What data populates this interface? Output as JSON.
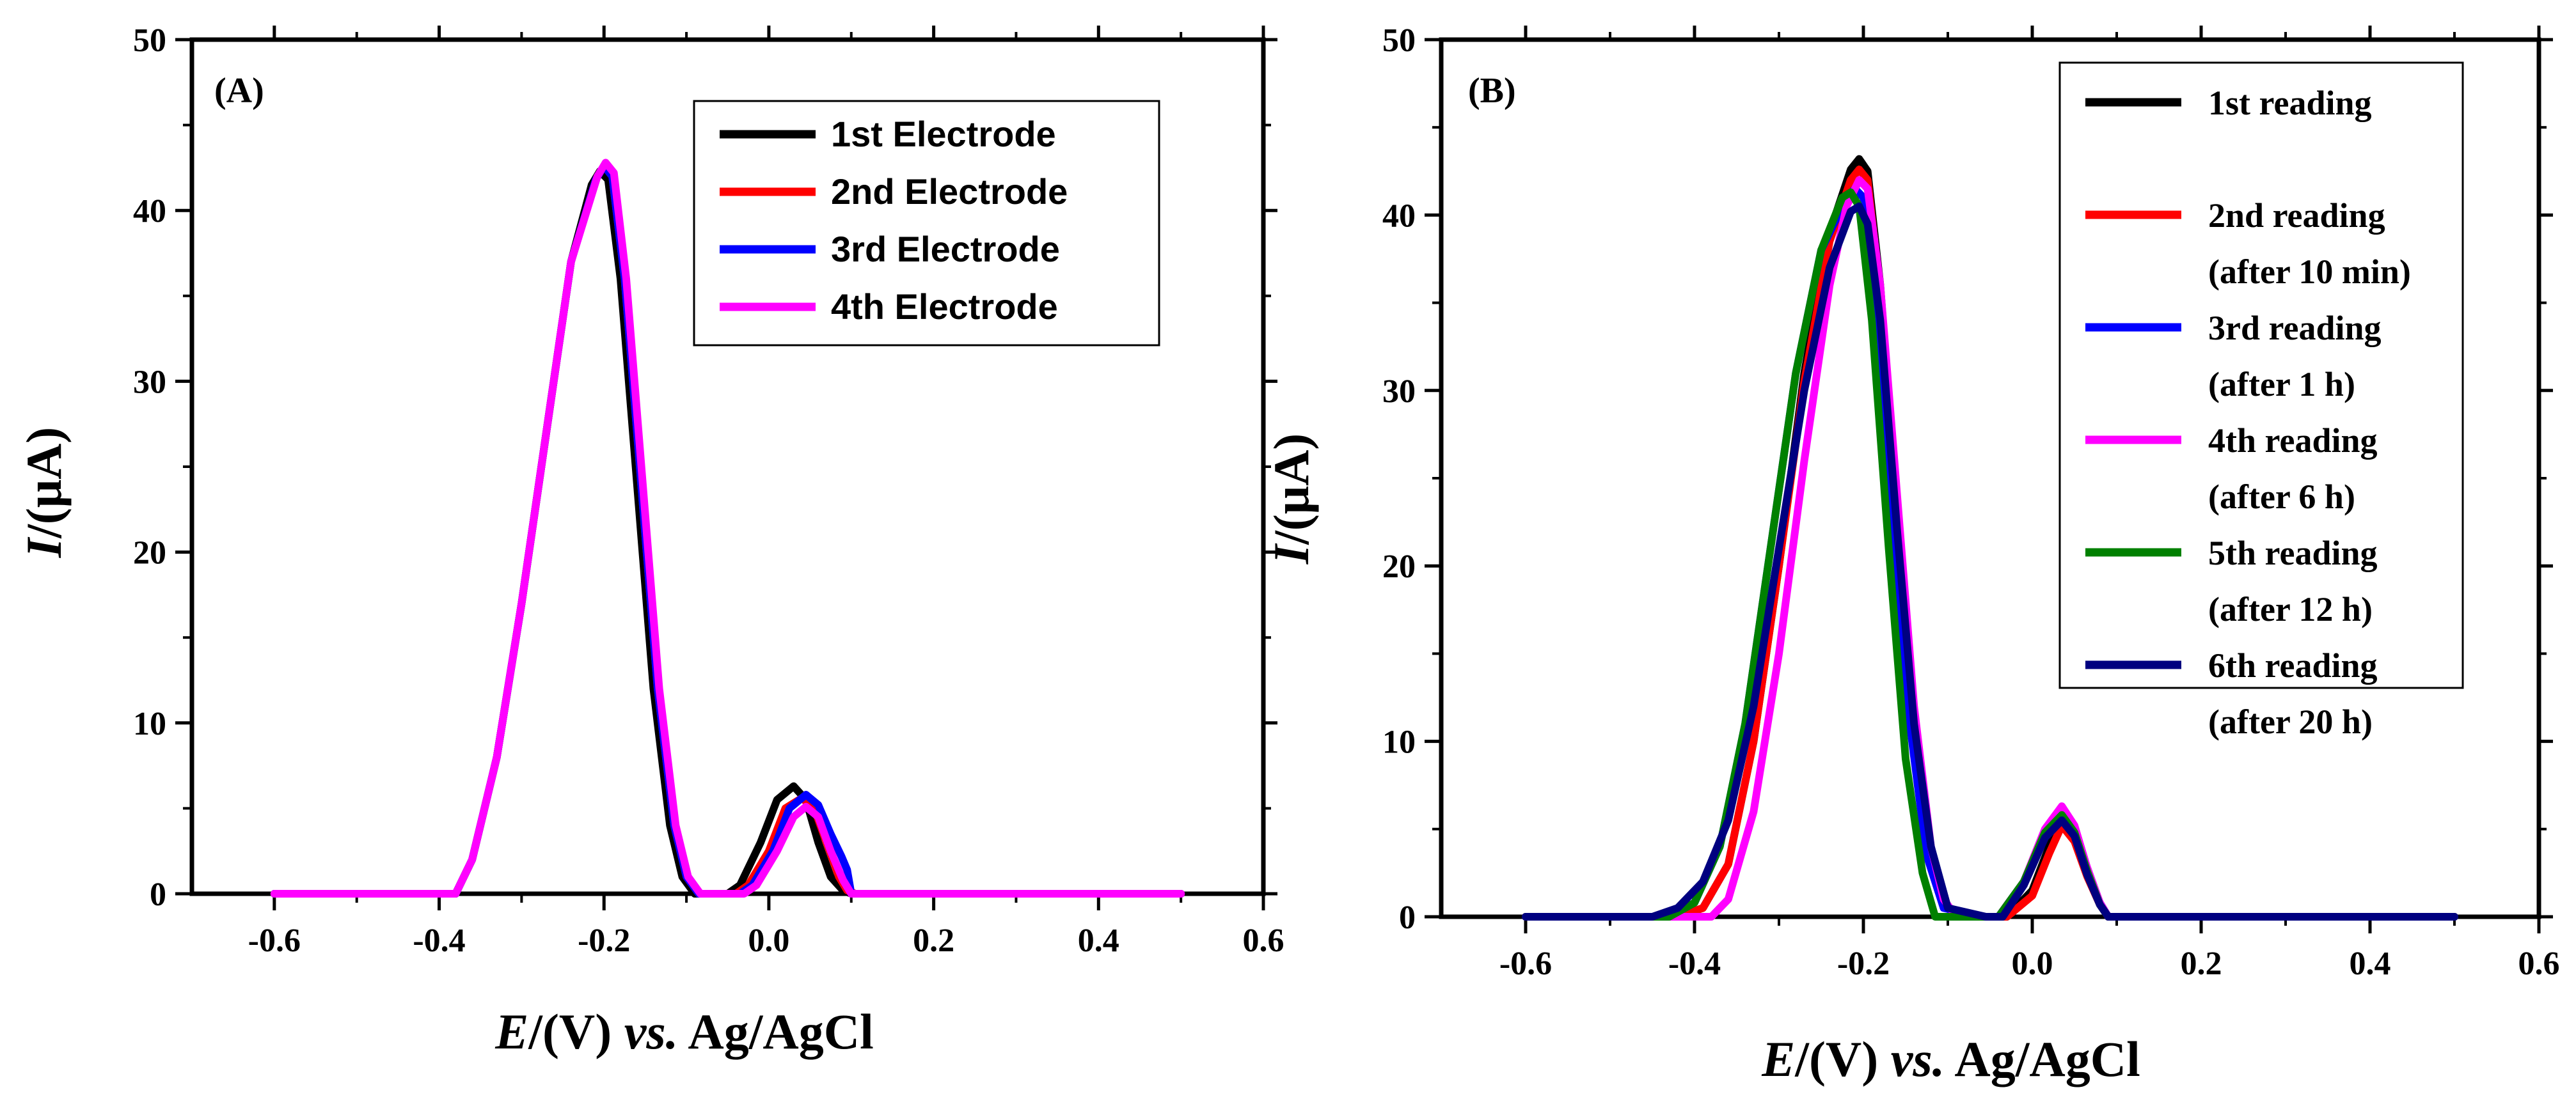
{
  "chart_data": [
    {
      "id": "A",
      "type": "line",
      "panel_label": "(A)",
      "xlabel_italic": "E",
      "xlabel_rest": "/(V) ",
      "xlabel_vs": "vs.",
      "xlabel_ref": " Ag/AgCl",
      "ylabel_italic": "I",
      "ylabel_rest": "/(μA)",
      "xlim": [
        -0.7,
        0.6
      ],
      "ylim": [
        0,
        50
      ],
      "xticks": [
        -0.6,
        -0.4,
        -0.2,
        0.0,
        0.2,
        0.4,
        0.6
      ],
      "xtick_labels": [
        "-0.6",
        "-0.4",
        "-0.2",
        "0.0",
        "0.2",
        "0.4",
        "0.6"
      ],
      "yticks": [
        0,
        10,
        20,
        30,
        40,
        50
      ],
      "ytick_labels": [
        "0",
        "10",
        "20",
        "30",
        "40",
        "50"
      ],
      "legend_position": "top-right",
      "series": [
        {
          "name": "1st Electrode",
          "color": "#000000",
          "x": [
            -0.6,
            -0.38,
            -0.36,
            -0.33,
            -0.3,
            -0.27,
            -0.24,
            -0.215,
            -0.205,
            -0.195,
            -0.18,
            -0.16,
            -0.14,
            -0.12,
            -0.105,
            -0.09,
            -0.05,
            -0.035,
            -0.01,
            0.01,
            0.03,
            0.045,
            0.06,
            0.075,
            0.09,
            0.1,
            0.5
          ],
          "y": [
            0,
            0,
            2,
            8,
            17,
            27,
            37,
            41.5,
            42.3,
            41.8,
            36,
            24,
            12,
            4,
            1,
            0,
            0,
            0.5,
            3,
            5.5,
            6.3,
            5.5,
            3,
            1,
            0.2,
            0,
            0
          ]
        },
        {
          "name": "2nd Electrode",
          "color": "#ff0000",
          "x": [
            -0.6,
            -0.38,
            -0.36,
            -0.33,
            -0.3,
            -0.27,
            -0.24,
            -0.21,
            -0.2,
            -0.19,
            -0.175,
            -0.155,
            -0.135,
            -0.115,
            -0.1,
            -0.085,
            -0.04,
            -0.025,
            0.0,
            0.02,
            0.04,
            0.055,
            0.07,
            0.085,
            0.095,
            0.105,
            0.5
          ],
          "y": [
            0,
            0,
            2,
            8,
            17,
            27,
            37,
            41.8,
            42.6,
            42,
            36,
            24,
            12,
            4,
            1,
            0,
            0,
            0.5,
            2.5,
            5,
            5.6,
            5,
            3,
            1,
            0.2,
            0,
            0
          ]
        },
        {
          "name": "3rd Electrode",
          "color": "#0000ff",
          "x": [
            -0.6,
            -0.38,
            -0.36,
            -0.33,
            -0.3,
            -0.27,
            -0.24,
            -0.21,
            -0.2,
            -0.19,
            -0.175,
            -0.155,
            -0.135,
            -0.115,
            -0.1,
            -0.085,
            -0.035,
            -0.02,
            0.005,
            0.025,
            0.045,
            0.06,
            0.075,
            0.088,
            0.095,
            0.1,
            0.5
          ],
          "y": [
            0,
            0,
            2,
            8,
            17,
            27,
            37,
            41.8,
            42.6,
            42,
            36,
            24,
            12,
            4,
            1,
            0,
            0,
            0.5,
            2.5,
            5,
            5.8,
            5.2,
            3.5,
            2.2,
            1.4,
            0,
            0
          ]
        },
        {
          "name": "4th Electrode",
          "color": "#ff00ff",
          "x": [
            -0.6,
            -0.38,
            -0.36,
            -0.33,
            -0.3,
            -0.27,
            -0.24,
            -0.208,
            -0.198,
            -0.188,
            -0.173,
            -0.153,
            -0.133,
            -0.113,
            -0.098,
            -0.083,
            -0.03,
            -0.015,
            0.01,
            0.03,
            0.045,
            0.06,
            0.075,
            0.09,
            0.1,
            0.5
          ],
          "y": [
            0,
            0,
            2,
            8,
            17,
            27,
            37,
            42,
            42.8,
            42.2,
            36,
            24,
            12,
            4,
            1,
            0,
            0,
            0.5,
            2.5,
            4.5,
            5.1,
            4.5,
            2.5,
            0.8,
            0,
            0
          ]
        }
      ]
    },
    {
      "id": "B",
      "type": "line",
      "panel_label": "(B)",
      "xlabel_italic": "E",
      "xlabel_rest": "/(V) ",
      "xlabel_vs": "vs.",
      "xlabel_ref": " Ag/AgCl",
      "ylabel_italic": "I",
      "ylabel_rest": "/(μA)",
      "xlim": [
        -0.7,
        0.6
      ],
      "ylim": [
        0,
        50
      ],
      "xticks": [
        -0.6,
        -0.4,
        -0.2,
        0.0,
        0.2,
        0.4,
        0.6
      ],
      "xtick_labels": [
        "-0.6",
        "-0.4",
        "-0.2",
        "0.0",
        "0.2",
        "0.4",
        "0.6"
      ],
      "yticks": [
        0,
        10,
        20,
        30,
        40,
        50
      ],
      "ytick_labels": [
        "0",
        "10",
        "20",
        "30",
        "40",
        "50"
      ],
      "legend_position": "top-right",
      "series": [
        {
          "name": "1st reading",
          "note": "",
          "color": "#000000",
          "x": [
            -0.6,
            -0.42,
            -0.39,
            -0.36,
            -0.33,
            -0.3,
            -0.27,
            -0.24,
            -0.215,
            -0.205,
            -0.195,
            -0.18,
            -0.16,
            -0.14,
            -0.12,
            -0.1,
            -0.06,
            -0.03,
            0.0,
            0.02,
            0.035,
            0.05,
            0.065,
            0.08,
            0.09,
            0.5
          ],
          "y": [
            0,
            0,
            0.5,
            3,
            10,
            20,
            31,
            39,
            42.6,
            43.2,
            42.5,
            36,
            23,
            10,
            3,
            0.5,
            0,
            0,
            1.5,
            4,
            5.5,
            4.5,
            2.5,
            0.8,
            0,
            0
          ]
        },
        {
          "name": "2nd reading",
          "note": "(after 10 min)",
          "color": "#ff0000",
          "x": [
            -0.6,
            -0.42,
            -0.39,
            -0.36,
            -0.33,
            -0.3,
            -0.27,
            -0.24,
            -0.215,
            -0.205,
            -0.195,
            -0.18,
            -0.16,
            -0.14,
            -0.12,
            -0.1,
            -0.06,
            -0.03,
            0.0,
            0.02,
            0.035,
            0.05,
            0.065,
            0.08,
            0.09,
            0.5
          ],
          "y": [
            0,
            0,
            0.5,
            3,
            10,
            20,
            30.5,
            38.5,
            42,
            42.6,
            42,
            35.5,
            22.5,
            10,
            3,
            0.5,
            0,
            0,
            1.2,
            3.6,
            5.2,
            4.3,
            2.3,
            0.7,
            0,
            0
          ]
        },
        {
          "name": "3rd reading",
          "note": "(after 1 h)",
          "color": "#0000ff",
          "x": [
            -0.6,
            -0.43,
            -0.4,
            -0.37,
            -0.34,
            -0.31,
            -0.28,
            -0.25,
            -0.22,
            -0.21,
            -0.2,
            -0.185,
            -0.165,
            -0.145,
            -0.125,
            -0.105,
            -0.06,
            -0.04,
            -0.01,
            0.015,
            0.035,
            0.05,
            0.065,
            0.08,
            0.09,
            0.5
          ],
          "y": [
            0,
            0,
            0.8,
            4,
            11,
            21,
            31,
            38,
            41,
            41.5,
            41,
            35.5,
            23,
            11,
            3.5,
            0.5,
            0,
            0,
            2,
            4.8,
            6,
            5,
            2.8,
            0.8,
            0,
            0
          ]
        },
        {
          "name": "4th reading",
          "note": "(after 6 h)",
          "color": "#ff00ff",
          "x": [
            -0.6,
            -0.38,
            -0.36,
            -0.33,
            -0.3,
            -0.27,
            -0.24,
            -0.22,
            -0.205,
            -0.195,
            -0.18,
            -0.16,
            -0.14,
            -0.12,
            -0.105,
            -0.09,
            -0.06,
            -0.04,
            -0.01,
            0.015,
            0.035,
            0.05,
            0.065,
            0.08,
            0.09,
            0.5
          ],
          "y": [
            0,
            0,
            1,
            6,
            15,
            26,
            36,
            40.5,
            42,
            41.5,
            36,
            24,
            12,
            4,
            1,
            0,
            0,
            0,
            2,
            5,
            6.3,
            5.2,
            2.8,
            0.8,
            0,
            0
          ]
        },
        {
          "name": "5th reading",
          "note": "(after 12 h)",
          "color": "#008000",
          "x": [
            -0.6,
            -0.43,
            -0.4,
            -0.37,
            -0.34,
            -0.31,
            -0.28,
            -0.25,
            -0.225,
            -0.215,
            -0.205,
            -0.19,
            -0.17,
            -0.15,
            -0.13,
            -0.115,
            -0.06,
            -0.04,
            -0.01,
            0.015,
            0.035,
            0.05,
            0.065,
            0.08,
            0.09,
            0.5
          ],
          "y": [
            0,
            0,
            0.8,
            4,
            11,
            21,
            31,
            38,
            41,
            41.3,
            40.5,
            34,
            21,
            9,
            2.5,
            0,
            0,
            0,
            2,
            4.8,
            5.8,
            4.8,
            2.6,
            0.7,
            0,
            0
          ]
        },
        {
          "name": "6th reading",
          "note": "(after 20 h)",
          "color": "#000080",
          "x": [
            -0.6,
            -0.45,
            -0.42,
            -0.39,
            -0.36,
            -0.33,
            -0.3,
            -0.27,
            -0.24,
            -0.215,
            -0.205,
            -0.195,
            -0.18,
            -0.16,
            -0.14,
            -0.12,
            -0.1,
            -0.055,
            -0.035,
            -0.01,
            0.015,
            0.035,
            0.05,
            0.065,
            0.08,
            0.09,
            0.5
          ],
          "y": [
            0,
            0,
            0.5,
            2,
            5.5,
            12,
            21,
            30,
            37,
            40.2,
            40.5,
            39.5,
            34,
            22,
            11,
            4,
            0.5,
            0,
            0,
            1.8,
            4.5,
            5.5,
            4.6,
            2.4,
            0.7,
            0,
            0
          ]
        }
      ]
    }
  ]
}
